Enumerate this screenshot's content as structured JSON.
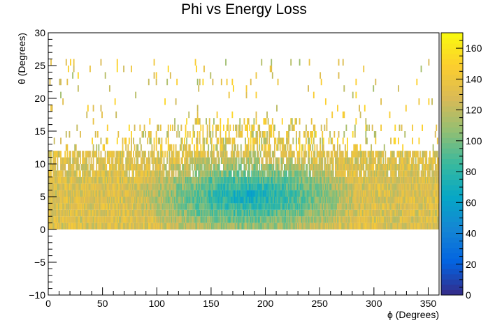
{
  "chart_data": {
    "type": "heatmap",
    "title": "Phi vs Energy Loss",
    "xlabel": "ϕ (Degrees)",
    "ylabel": "θ (Degrees)",
    "xlim": [
      0,
      360
    ],
    "ylim": [
      -10,
      30
    ],
    "x_ticks": [
      0,
      50,
      100,
      150,
      200,
      250,
      300,
      350
    ],
    "y_ticks": [
      -10,
      -5,
      0,
      5,
      10,
      15,
      20,
      25,
      30
    ],
    "x_tick_labels": [
      "0",
      "50",
      "100",
      "150",
      "200",
      "250",
      "300",
      "350"
    ],
    "y_tick_labels": [
      "−10",
      "−5",
      "0",
      "5",
      "10",
      "15",
      "20",
      "25",
      "30"
    ],
    "colorbar": {
      "min": 0,
      "max": 170,
      "ticks": [
        0,
        20,
        40,
        60,
        80,
        100,
        120,
        140,
        160
      ],
      "tick_labels": [
        "0",
        "20",
        "40",
        "60",
        "80",
        "100",
        "120",
        "140",
        "160"
      ],
      "palette": [
        "#352a87",
        "#0363e1",
        "#1485d4",
        "#06a7c6",
        "#38b99e",
        "#92bf73",
        "#d9ba56",
        "#fcce2e",
        "#f9fb0e"
      ]
    },
    "density": {
      "x_bins": 360,
      "y_bins": 40,
      "theta_min": 0,
      "core_theta_max": 8,
      "fringe_theta_max": 17,
      "sparse_theta_max": 26,
      "center_phi": 185,
      "center_theta": 4.5,
      "center_value": 65,
      "edge_value": 130
    }
  }
}
